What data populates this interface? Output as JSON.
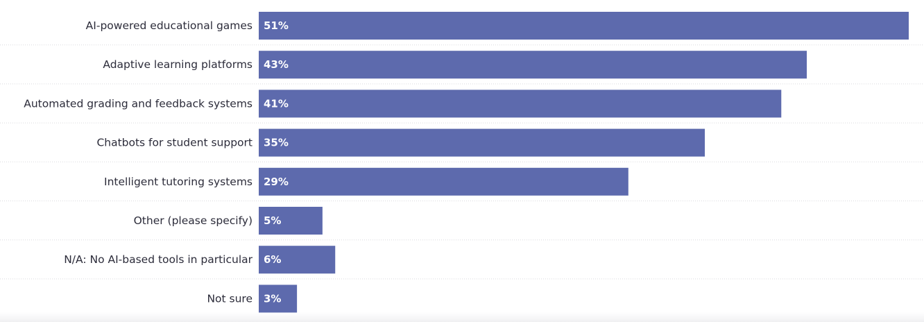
{
  "chart_data": {
    "type": "bar",
    "orientation": "horizontal",
    "title": "",
    "xlabel": "",
    "ylabel": "",
    "categories": [
      "AI-powered educational games",
      "Adaptive learning platforms",
      "Automated grading and feedback systems",
      "Chatbots for student support",
      "Intelligent tutoring systems",
      "Other (please specify)",
      "N/A: No AI-based tools in particular",
      "Not sure"
    ],
    "values": [
      51,
      43,
      41,
      35,
      29,
      5,
      6,
      3
    ],
    "value_labels": [
      "51%",
      "43%",
      "41%",
      "35%",
      "29%",
      "5%",
      "6%",
      "3%"
    ],
    "xlim": [
      0,
      51
    ],
    "grid": false,
    "legend": "none",
    "bar_color": "#5d6aad",
    "separator_color": "#d9d9de"
  }
}
